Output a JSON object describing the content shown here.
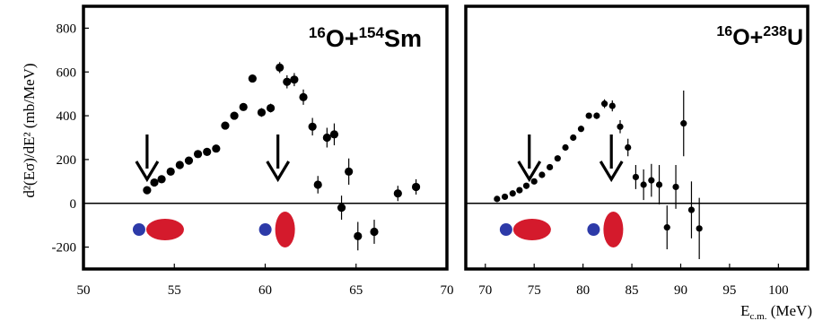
{
  "colors": {
    "projectile": "#2d3aa8",
    "target": "#d41a2c",
    "axis": "#000000"
  },
  "chart_data": [
    {
      "type": "scatter",
      "title_parts": [
        [
          "16",
          "sup"
        ],
        [
          "O+",
          ""
        ],
        [
          "154",
          "sup"
        ],
        [
          "Sm",
          ""
        ]
      ],
      "ylabel": "d²(Eσ)/dE² (mb/MeV)",
      "xlabel": "",
      "xlim": [
        50,
        70
      ],
      "ylim": [
        -300,
        900
      ],
      "xticks": [
        50,
        55,
        60,
        65,
        70
      ],
      "yticks": [
        -200,
        0,
        200,
        400,
        600,
        800
      ],
      "grid": false,
      "arrows_x": [
        53.5,
        60.7
      ],
      "shapes": [
        {
          "x": 53.8,
          "orientation": "prolate-horizontal"
        },
        {
          "x": 60.5,
          "orientation": "prolate-vertical"
        }
      ],
      "points": [
        {
          "x": 53.5,
          "y": 60,
          "err": 0
        },
        {
          "x": 53.9,
          "y": 95,
          "err": 0
        },
        {
          "x": 54.3,
          "y": 110,
          "err": 0
        },
        {
          "x": 54.8,
          "y": 145,
          "err": 0
        },
        {
          "x": 55.3,
          "y": 175,
          "err": 0
        },
        {
          "x": 55.8,
          "y": 195,
          "err": 0
        },
        {
          "x": 56.3,
          "y": 225,
          "err": 0
        },
        {
          "x": 56.8,
          "y": 235,
          "err": 0
        },
        {
          "x": 57.3,
          "y": 250,
          "err": 0
        },
        {
          "x": 57.8,
          "y": 355,
          "err": 0
        },
        {
          "x": 58.3,
          "y": 400,
          "err": 0
        },
        {
          "x": 58.8,
          "y": 440,
          "err": 0
        },
        {
          "x": 59.3,
          "y": 570,
          "err": 0
        },
        {
          "x": 59.8,
          "y": 415,
          "err": 20
        },
        {
          "x": 60.3,
          "y": 435,
          "err": 20
        },
        {
          "x": 60.8,
          "y": 620,
          "err": 25
        },
        {
          "x": 61.2,
          "y": 555,
          "err": 30
        },
        {
          "x": 61.6,
          "y": 565,
          "err": 30
        },
        {
          "x": 62.1,
          "y": 485,
          "err": 35
        },
        {
          "x": 62.6,
          "y": 350,
          "err": 40
        },
        {
          "x": 62.9,
          "y": 85,
          "err": 40
        },
        {
          "x": 63.4,
          "y": 300,
          "err": 45
        },
        {
          "x": 63.8,
          "y": 315,
          "err": 50
        },
        {
          "x": 64.2,
          "y": -20,
          "err": 55
        },
        {
          "x": 64.6,
          "y": 145,
          "err": 60
        },
        {
          "x": 65.1,
          "y": -150,
          "err": 65
        },
        {
          "x": 66.0,
          "y": -130,
          "err": 55
        },
        {
          "x": 67.3,
          "y": 45,
          "err": 35
        },
        {
          "x": 68.3,
          "y": 75,
          "err": 35
        }
      ]
    },
    {
      "type": "scatter",
      "title_parts": [
        [
          "16",
          "sup"
        ],
        [
          "O+",
          ""
        ],
        [
          "238",
          "sup"
        ],
        [
          "U",
          ""
        ]
      ],
      "ylabel": "",
      "xlabel": "E",
      "xlabel_sub": "c.m.",
      "xlabel_unit": " (MeV)",
      "xlim": [
        68,
        103
      ],
      "ylim": [
        -300,
        900
      ],
      "xticks": [
        70,
        75,
        80,
        85,
        90,
        95,
        100
      ],
      "yticks": [],
      "grid": false,
      "arrows_x": [
        74.5,
        82.9
      ],
      "shapes": [
        {
          "x": 73.5,
          "orientation": "prolate-horizontal"
        },
        {
          "x": 82.0,
          "orientation": "prolate-vertical"
        }
      ],
      "points": [
        {
          "x": 71.2,
          "y": 20,
          "err": 0
        },
        {
          "x": 72.0,
          "y": 30,
          "err": 0
        },
        {
          "x": 72.8,
          "y": 45,
          "err": 0
        },
        {
          "x": 73.5,
          "y": 60,
          "err": 0
        },
        {
          "x": 74.2,
          "y": 80,
          "err": 0
        },
        {
          "x": 75.0,
          "y": 100,
          "err": 0
        },
        {
          "x": 75.8,
          "y": 130,
          "err": 0
        },
        {
          "x": 76.6,
          "y": 165,
          "err": 0
        },
        {
          "x": 77.4,
          "y": 205,
          "err": 0
        },
        {
          "x": 78.2,
          "y": 255,
          "err": 0
        },
        {
          "x": 79.0,
          "y": 300,
          "err": 0
        },
        {
          "x": 79.8,
          "y": 340,
          "err": 0
        },
        {
          "x": 80.6,
          "y": 400,
          "err": 0
        },
        {
          "x": 81.4,
          "y": 400,
          "err": 15
        },
        {
          "x": 82.2,
          "y": 455,
          "err": 20
        },
        {
          "x": 83.0,
          "y": 445,
          "err": 25
        },
        {
          "x": 83.8,
          "y": 350,
          "err": 30
        },
        {
          "x": 84.6,
          "y": 255,
          "err": 40
        },
        {
          "x": 85.4,
          "y": 120,
          "err": 55
        },
        {
          "x": 86.2,
          "y": 85,
          "err": 70
        },
        {
          "x": 87.0,
          "y": 105,
          "err": 75
        },
        {
          "x": 87.8,
          "y": 85,
          "err": 90
        },
        {
          "x": 88.6,
          "y": -110,
          "err": 100
        },
        {
          "x": 89.5,
          "y": 75,
          "err": 100
        },
        {
          "x": 90.3,
          "y": 365,
          "err": 150
        },
        {
          "x": 91.1,
          "y": -30,
          "err": 130
        },
        {
          "x": 91.9,
          "y": -115,
          "err": 140
        }
      ]
    }
  ]
}
